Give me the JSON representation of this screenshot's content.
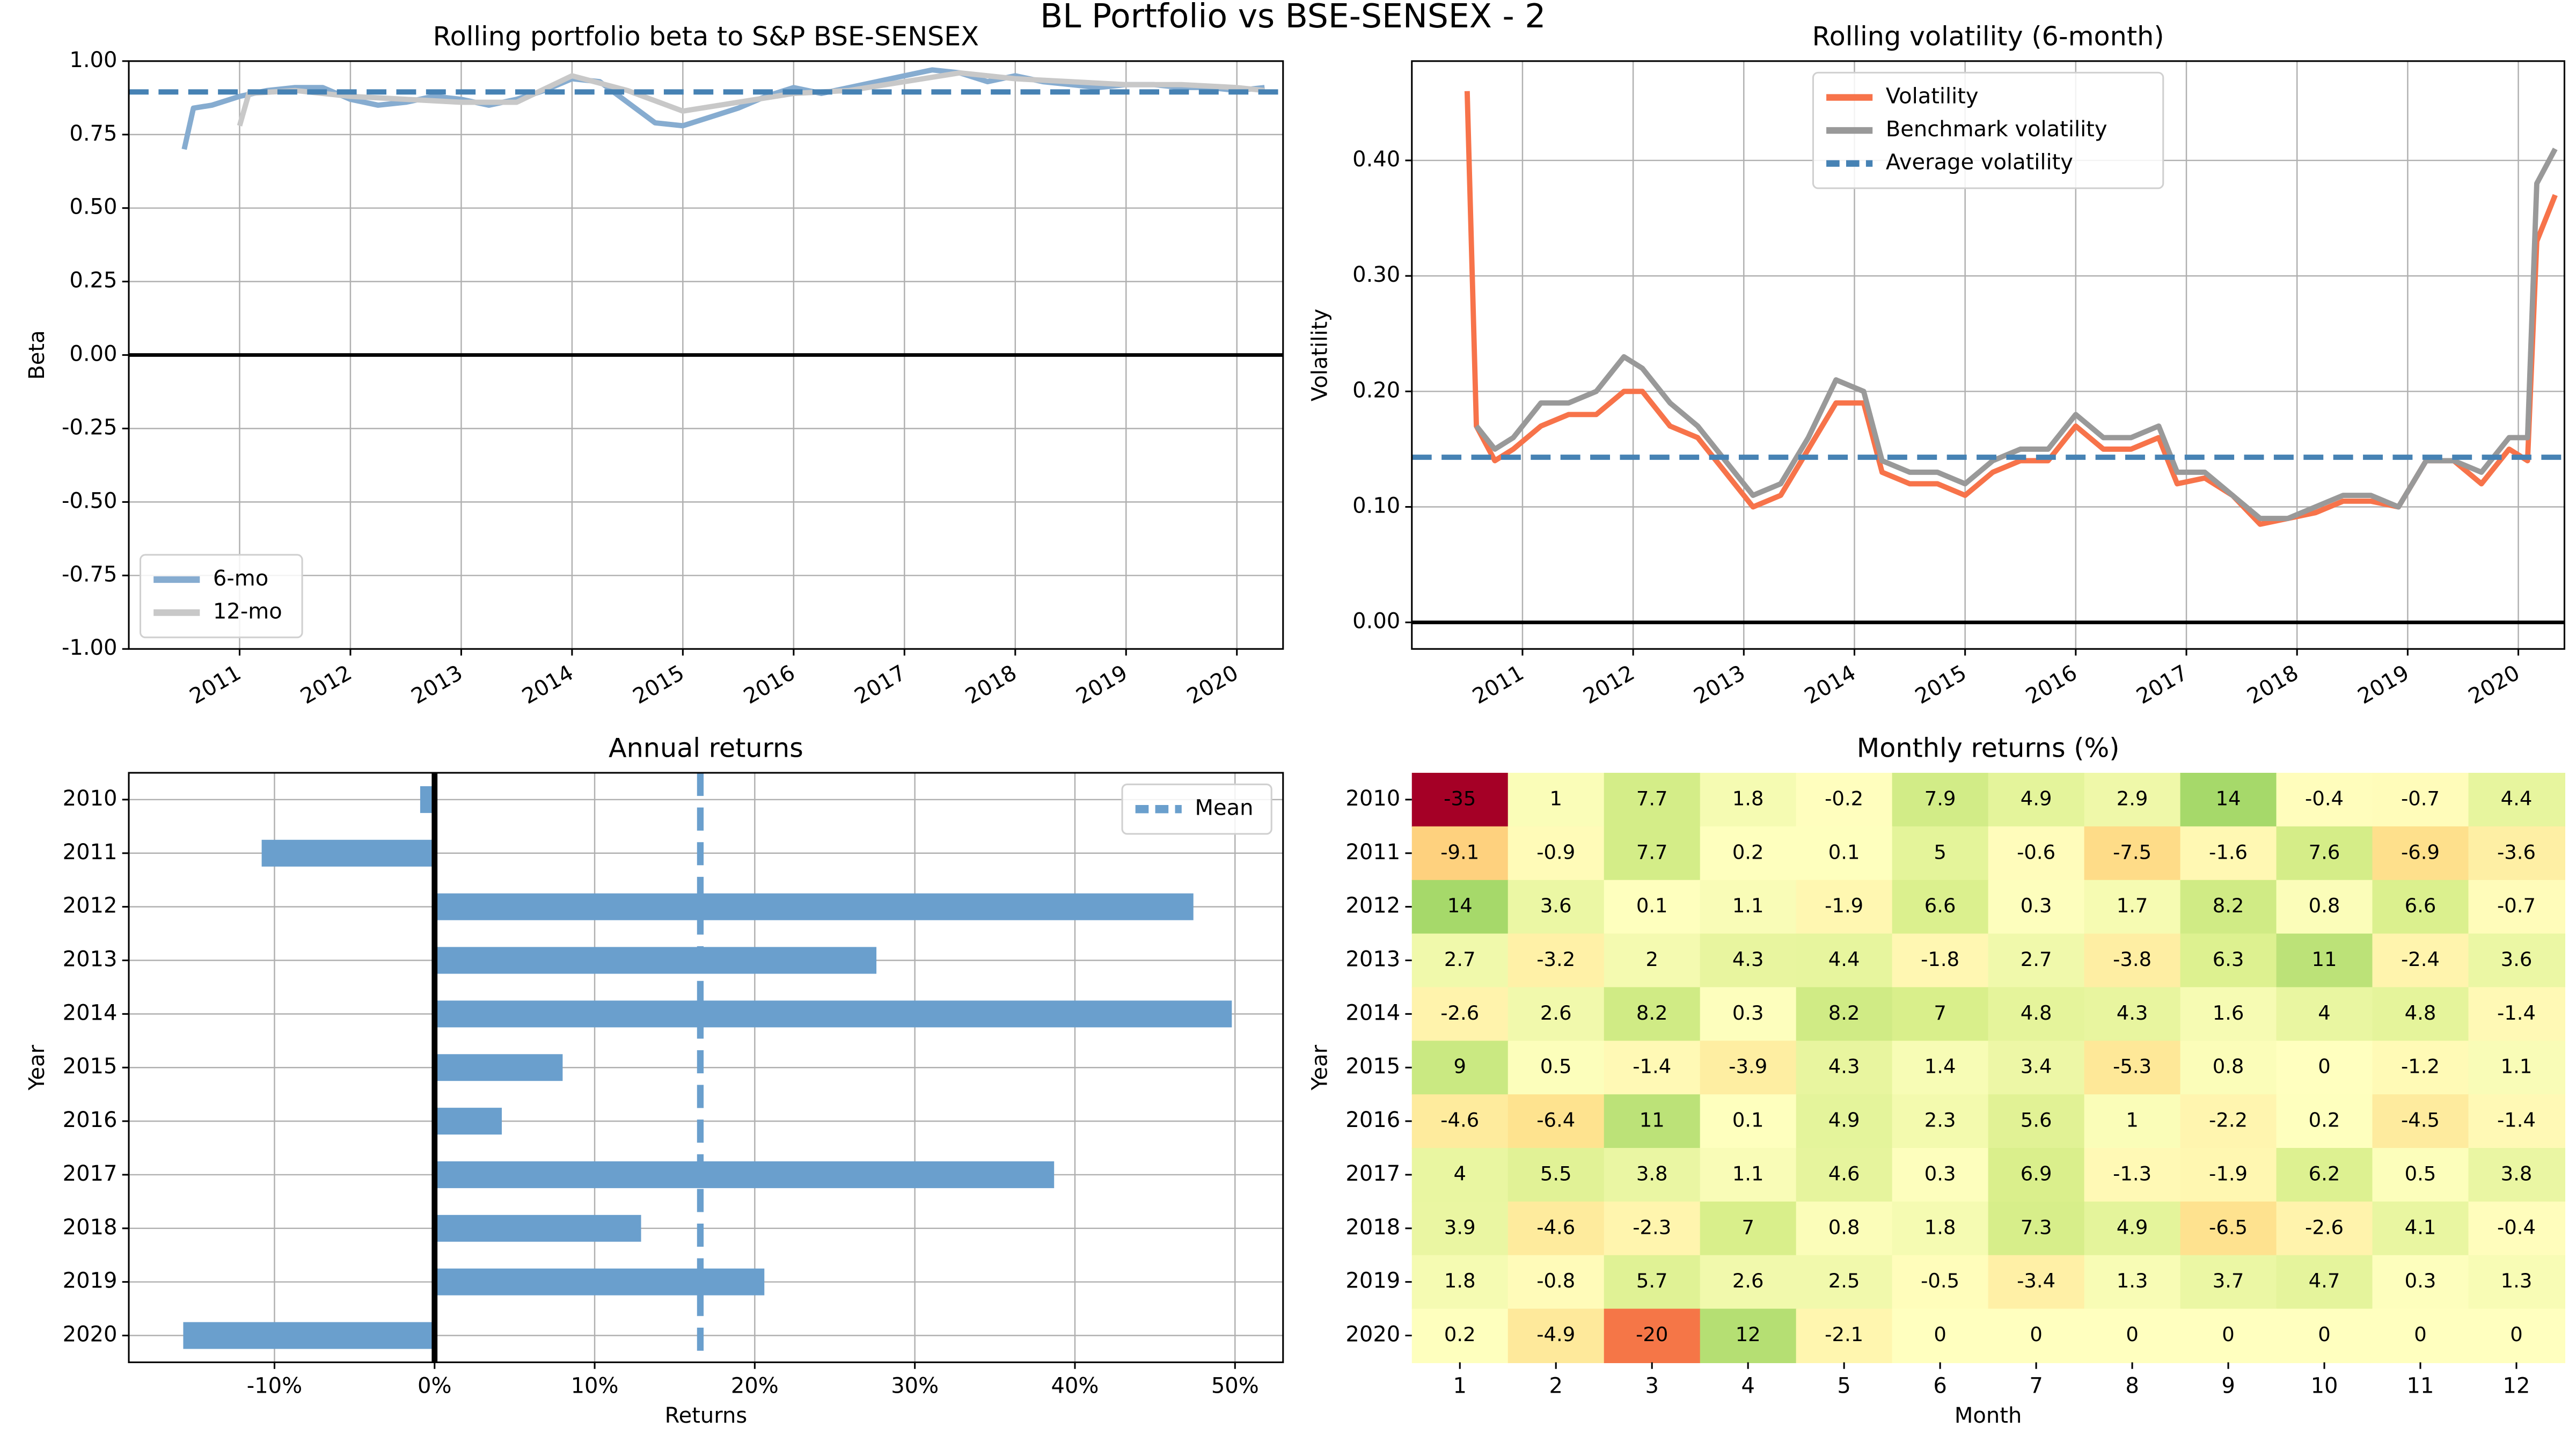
{
  "title": "BL Portfolio vs BSE-SENSEX - 2",
  "chart_data": [
    {
      "type": "line",
      "title": "Rolling portfolio beta to S&P BSE-SENSEX",
      "y_label": "Beta",
      "xlim": [
        "2010-01",
        "2020-06"
      ],
      "xticks": [
        {
          "value": "2011-01",
          "label": "2011"
        },
        {
          "value": "2012-01",
          "label": "2012"
        },
        {
          "value": "2013-01",
          "label": "2013"
        },
        {
          "value": "2014-01",
          "label": "2014"
        },
        {
          "value": "2015-01",
          "label": "2015"
        },
        {
          "value": "2016-01",
          "label": "2016"
        },
        {
          "value": "2017-01",
          "label": "2017"
        },
        {
          "value": "2018-01",
          "label": "2018"
        },
        {
          "value": "2019-01",
          "label": "2019"
        },
        {
          "value": "2020-01",
          "label": "2020"
        }
      ],
      "ylim": [
        -1,
        1
      ],
      "yticks": [
        {
          "value": -1,
          "label": "-1.00"
        },
        {
          "value": -0.75,
          "label": "-0.75"
        },
        {
          "value": -0.5,
          "label": "-0.50"
        },
        {
          "value": -0.25,
          "label": "-0.25"
        },
        {
          "value": 0,
          "label": "0.00"
        },
        {
          "value": 0.25,
          "label": "0.25"
        },
        {
          "value": 0.5,
          "label": "0.50"
        },
        {
          "value": 0.75,
          "label": "0.75"
        },
        {
          "value": 1,
          "label": "1.00"
        }
      ],
      "grid": true,
      "legend": "lower left",
      "hlines": [
        {
          "value": 0,
          "color": "#000000",
          "style": "solid"
        },
        {
          "value": 0.895,
          "color": "#4682b4",
          "style": "dashed"
        }
      ],
      "series": [
        {
          "name": "6-mo",
          "color": "#86acd0",
          "x": [
            "2010-07",
            "2010-08",
            "2010-10",
            "2011-01",
            "2011-04",
            "2011-07",
            "2011-10",
            "2012-01",
            "2012-04",
            "2012-07",
            "2012-10",
            "2013-01",
            "2013-04",
            "2013-07",
            "2013-10",
            "2014-01",
            "2014-04",
            "2014-07",
            "2014-10",
            "2015-01",
            "2015-04",
            "2015-07",
            "2015-10",
            "2016-01",
            "2016-04",
            "2016-07",
            "2016-10",
            "2017-01",
            "2017-04",
            "2017-07",
            "2017-10",
            "2018-01",
            "2018-04",
            "2018-07",
            "2018-10",
            "2019-01",
            "2019-04",
            "2019-07",
            "2019-10",
            "2020-01",
            "2020-04"
          ],
          "values": [
            0.7,
            0.84,
            0.85,
            0.88,
            0.9,
            0.91,
            0.91,
            0.87,
            0.85,
            0.86,
            0.88,
            0.87,
            0.85,
            0.87,
            0.9,
            0.94,
            0.93,
            0.86,
            0.79,
            0.78,
            0.81,
            0.84,
            0.88,
            0.91,
            0.89,
            0.91,
            0.93,
            0.95,
            0.97,
            0.96,
            0.93,
            0.95,
            0.93,
            0.92,
            0.91,
            0.92,
            0.92,
            0.91,
            0.91,
            0.9,
            0.91
          ]
        },
        {
          "name": "12-mo",
          "color": "#c8c8c8",
          "x": [
            "2011-01",
            "2011-02",
            "2011-07",
            "2012-01",
            "2012-07",
            "2013-01",
            "2013-07",
            "2014-01",
            "2014-07",
            "2015-01",
            "2015-07",
            "2016-01",
            "2016-07",
            "2017-01",
            "2017-07",
            "2018-01",
            "2018-07",
            "2019-01",
            "2019-07",
            "2020-01",
            "2020-04"
          ],
          "values": [
            0.78,
            0.89,
            0.9,
            0.88,
            0.87,
            0.86,
            0.86,
            0.95,
            0.9,
            0.83,
            0.86,
            0.89,
            0.9,
            0.93,
            0.96,
            0.94,
            0.93,
            0.92,
            0.92,
            0.91,
            0.9
          ]
        }
      ]
    },
    {
      "type": "line",
      "title": "Rolling volatility (6-month)",
      "y_label": "Volatility",
      "xlim": [
        "2010-01",
        "2020-06"
      ],
      "xticks": [
        {
          "value": "2011-01",
          "label": "2011"
        },
        {
          "value": "2012-01",
          "label": "2012"
        },
        {
          "value": "2013-01",
          "label": "2013"
        },
        {
          "value": "2014-01",
          "label": "2014"
        },
        {
          "value": "2015-01",
          "label": "2015"
        },
        {
          "value": "2016-01",
          "label": "2016"
        },
        {
          "value": "2017-01",
          "label": "2017"
        },
        {
          "value": "2018-01",
          "label": "2018"
        },
        {
          "value": "2019-01",
          "label": "2019"
        },
        {
          "value": "2020-01",
          "label": "2020"
        }
      ],
      "ylim": [
        -0.023,
        0.486
      ],
      "yticks": [
        {
          "value": 0,
          "label": "0.00"
        },
        {
          "value": 0.1,
          "label": "0.10"
        },
        {
          "value": 0.2,
          "label": "0.20"
        },
        {
          "value": 0.3,
          "label": "0.30"
        },
        {
          "value": 0.4,
          "label": "0.40"
        }
      ],
      "grid": true,
      "legend": "upper center",
      "hlines": [
        {
          "value": 0,
          "color": "#000000",
          "style": "solid"
        },
        {
          "value": 0.143,
          "color": "#4682b4",
          "style": "dashed",
          "name": "Average volatility"
        }
      ],
      "series": [
        {
          "name": "Volatility",
          "color": "#f7734a",
          "x": [
            "2010-07",
            "2010-08",
            "2010-10",
            "2010-12",
            "2011-03",
            "2011-06",
            "2011-09",
            "2011-12",
            "2012-02",
            "2012-05",
            "2012-08",
            "2012-11",
            "2013-02",
            "2013-05",
            "2013-08",
            "2013-11",
            "2014-02",
            "2014-04",
            "2014-07",
            "2014-10",
            "2015-01",
            "2015-04",
            "2015-07",
            "2015-10",
            "2016-01",
            "2016-04",
            "2016-07",
            "2016-10",
            "2016-12",
            "2017-03",
            "2017-06",
            "2017-09",
            "2017-12",
            "2018-03",
            "2018-06",
            "2018-09",
            "2018-12",
            "2019-03",
            "2019-06",
            "2019-09",
            "2019-12",
            "2020-02",
            "2020-03",
            "2020-05"
          ],
          "values": [
            0.46,
            0.17,
            0.14,
            0.15,
            0.17,
            0.18,
            0.18,
            0.2,
            0.2,
            0.17,
            0.16,
            0.13,
            0.1,
            0.11,
            0.15,
            0.19,
            0.19,
            0.13,
            0.12,
            0.12,
            0.11,
            0.13,
            0.14,
            0.14,
            0.17,
            0.15,
            0.15,
            0.16,
            0.12,
            0.125,
            0.11,
            0.085,
            0.09,
            0.095,
            0.105,
            0.105,
            0.1,
            0.14,
            0.14,
            0.12,
            0.15,
            0.14,
            0.33,
            0.37
          ]
        },
        {
          "name": "Benchmark volatility",
          "color": "#999999",
          "x": [
            "2010-08",
            "2010-10",
            "2010-12",
            "2011-03",
            "2011-06",
            "2011-09",
            "2011-12",
            "2012-02",
            "2012-05",
            "2012-08",
            "2012-11",
            "2013-02",
            "2013-05",
            "2013-08",
            "2013-11",
            "2014-02",
            "2014-04",
            "2014-07",
            "2014-10",
            "2015-01",
            "2015-04",
            "2015-07",
            "2015-10",
            "2016-01",
            "2016-04",
            "2016-07",
            "2016-10",
            "2016-12",
            "2017-03",
            "2017-06",
            "2017-09",
            "2017-12",
            "2018-03",
            "2018-06",
            "2018-09",
            "2018-12",
            "2019-03",
            "2019-06",
            "2019-09",
            "2019-12",
            "2020-02",
            "2020-03",
            "2020-05"
          ],
          "values": [
            0.17,
            0.15,
            0.16,
            0.19,
            0.19,
            0.2,
            0.23,
            0.22,
            0.19,
            0.17,
            0.14,
            0.11,
            0.12,
            0.16,
            0.21,
            0.2,
            0.14,
            0.13,
            0.13,
            0.12,
            0.14,
            0.15,
            0.15,
            0.18,
            0.16,
            0.16,
            0.17,
            0.13,
            0.13,
            0.11,
            0.09,
            0.09,
            0.1,
            0.11,
            0.11,
            0.1,
            0.14,
            0.14,
            0.13,
            0.16,
            0.16,
            0.38,
            0.41
          ]
        }
      ]
    },
    {
      "type": "hbar",
      "title": "Annual returns",
      "x_label": "Returns",
      "y_label": "Year",
      "categories": [
        "2010",
        "2011",
        "2012",
        "2013",
        "2014",
        "2015",
        "2016",
        "2017",
        "2018",
        "2019",
        "2020"
      ],
      "values": [
        -0.9,
        -10.8,
        47.4,
        27.6,
        49.8,
        8.0,
        4.2,
        38.7,
        12.9,
        20.6,
        -15.7
      ],
      "color": "#6a9fcd",
      "xlim": [
        -19.1,
        53.0
      ],
      "xticks": [
        {
          "value": -10,
          "label": "-10%"
        },
        {
          "value": 0,
          "label": "0%"
        },
        {
          "value": 10,
          "label": "10%"
        },
        {
          "value": 20,
          "label": "20%"
        },
        {
          "value": 30,
          "label": "30%"
        },
        {
          "value": 40,
          "label": "40%"
        },
        {
          "value": 50,
          "label": "50%"
        }
      ],
      "grid": true,
      "legend": "upper right",
      "vlines": [
        {
          "value": 0,
          "color": "#000000",
          "style": "solid"
        },
        {
          "value": 16.6,
          "color": "#6a9fcd",
          "style": "dashed",
          "name": "Mean"
        }
      ]
    },
    {
      "type": "heatmap",
      "title": "Monthly returns (%)",
      "x_label": "Month",
      "y_label": "Year",
      "categories": [
        "2010",
        "2011",
        "2012",
        "2013",
        "2014",
        "2015",
        "2016",
        "2017",
        "2018",
        "2019",
        "2020"
      ],
      "columns": [
        1,
        2,
        3,
        4,
        5,
        6,
        7,
        8,
        9,
        10,
        11,
        12
      ],
      "colormap": "RdYlGn",
      "clim": [
        -35,
        35
      ],
      "values": [
        [
          -35,
          1,
          7.7,
          1.8,
          -0.2,
          7.9,
          4.9,
          2.9,
          14,
          -0.4,
          -0.7,
          4.4
        ],
        [
          -9.1,
          -0.9,
          7.7,
          0.2,
          0.1,
          5,
          -0.6,
          -7.5,
          -1.6,
          7.6,
          -6.9,
          -3.6
        ],
        [
          14,
          3.6,
          0.1,
          1.1,
          -1.9,
          6.6,
          0.3,
          1.7,
          8.2,
          0.8,
          6.6,
          -0.7
        ],
        [
          2.7,
          -3.2,
          2,
          4.3,
          4.4,
          -1.8,
          2.7,
          -3.8,
          6.3,
          11,
          -2.4,
          3.6
        ],
        [
          -2.6,
          2.6,
          8.2,
          0.3,
          8.2,
          7,
          4.8,
          4.3,
          1.6,
          4,
          4.8,
          -1.4
        ],
        [
          9,
          0.5,
          -1.4,
          -3.9,
          4.3,
          1.4,
          3.4,
          -5.3,
          0.8,
          0,
          -1.2,
          1.1
        ],
        [
          -4.6,
          -6.4,
          11,
          0.1,
          4.9,
          2.3,
          5.6,
          1,
          -2.2,
          0.2,
          -4.5,
          -1.4
        ],
        [
          4,
          5.5,
          3.8,
          1.1,
          4.6,
          0.3,
          6.9,
          -1.3,
          -1.9,
          6.2,
          0.5,
          3.8
        ],
        [
          3.9,
          -4.6,
          -2.3,
          7,
          0.8,
          1.8,
          7.3,
          4.9,
          -6.5,
          -2.6,
          4.1,
          -0.4
        ],
        [
          1.8,
          -0.8,
          5.7,
          2.6,
          2.5,
          -0.5,
          -3.4,
          1.3,
          3.7,
          4.7,
          0.3,
          1.3
        ],
        [
          0.2,
          -4.9,
          -20,
          12,
          -2.1,
          0,
          0,
          0,
          0,
          0,
          0,
          0
        ]
      ]
    }
  ]
}
